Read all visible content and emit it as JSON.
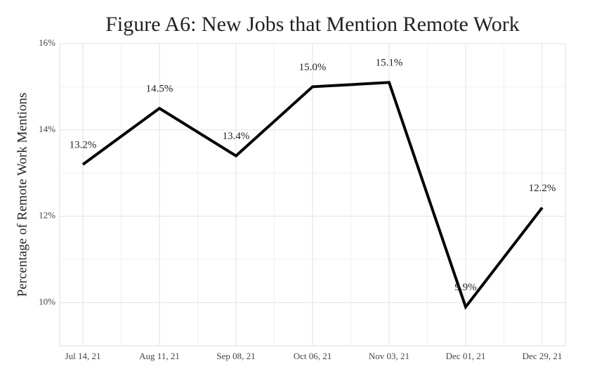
{
  "chart_data": {
    "type": "line",
    "title": "Figure A6: New Jobs that Mention Remote Work",
    "y_label": "Percentage of Remote Work Mentions",
    "categories": [
      "Jul 14, 21",
      "Aug 11, 21",
      "Sep 08, 21",
      "Oct 06, 21",
      "Nov 03, 21",
      "Dec 01, 21",
      "Dec 29, 21"
    ],
    "series": [
      {
        "name": "Remote work mentions",
        "color": "#000000",
        "values": [
          13.2,
          14.5,
          13.4,
          15.0,
          15.1,
          9.9,
          12.2
        ],
        "value_labels": [
          "13.2%",
          "14.5%",
          "13.4%",
          "15.0%",
          "15.1%",
          "9.9%",
          "12.2%"
        ]
      }
    ],
    "ylim": [
      9.0,
      16
    ],
    "yticks": [
      {
        "value": 10,
        "label": "10%"
      },
      {
        "value": 12,
        "label": "12%"
      },
      {
        "value": 14,
        "label": "14%"
      },
      {
        "value": 16,
        "label": "16%"
      }
    ],
    "grid": true
  }
}
